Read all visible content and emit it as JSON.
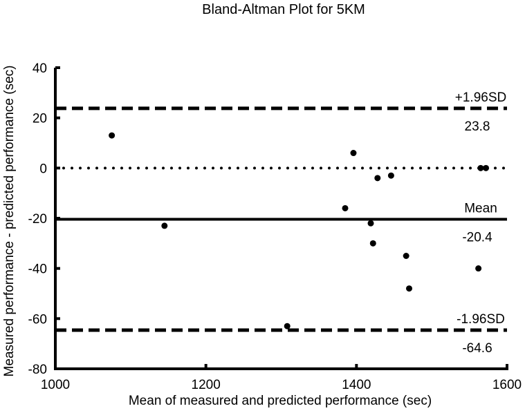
{
  "chart_data": {
    "type": "scatter",
    "title": "Bland-Altman Plot for 5KM",
    "xlabel": "Mean of measured and predicted performance (sec)",
    "ylabel": "Measured performance - predicted performance (sec)",
    "xlim": [
      1000,
      1600
    ],
    "ylim": [
      -80,
      40
    ],
    "x_ticks": [
      1000,
      1200,
      1400,
      1600
    ],
    "y_ticks": [
      40,
      20,
      0,
      -20,
      -40,
      -60,
      -80
    ],
    "grid": false,
    "points": [
      {
        "x": 1075,
        "y": 13
      },
      {
        "x": 1145,
        "y": -23
      },
      {
        "x": 1308,
        "y": -63
      },
      {
        "x": 1385,
        "y": -16
      },
      {
        "x": 1396,
        "y": 6
      },
      {
        "x": 1419,
        "y": -22
      },
      {
        "x": 1422,
        "y": -30
      },
      {
        "x": 1428,
        "y": -4
      },
      {
        "x": 1446,
        "y": -3
      },
      {
        "x": 1466,
        "y": -35
      },
      {
        "x": 1470,
        "y": -48
      },
      {
        "x": 1562,
        "y": -40
      },
      {
        "x": 1565,
        "y": 0
      },
      {
        "x": 1572,
        "y": 0
      }
    ],
    "reference_lines": [
      {
        "label": "+1.96SD",
        "value": 23.8,
        "value_label": "23.8",
        "style": "dashed"
      },
      {
        "label": "Mean",
        "value": -20.4,
        "value_label": "-20.4",
        "style": "solid"
      },
      {
        "label": "-1.96SD",
        "value": -64.6,
        "value_label": "-64.6",
        "style": "dashed"
      },
      {
        "label": "",
        "value": 0,
        "value_label": "",
        "style": "dotted"
      }
    ]
  }
}
